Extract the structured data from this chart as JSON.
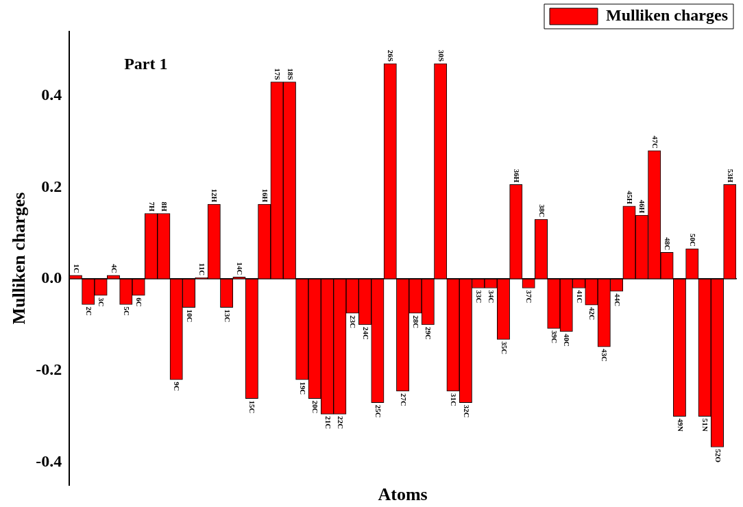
{
  "chart_data": {
    "type": "bar",
    "xlabel": "Atoms",
    "ylabel": "Mulliken charges",
    "annotations": [
      "Part 1"
    ],
    "categories": [
      "1C",
      "2C",
      "3C",
      "4C",
      "5C",
      "6C",
      "7H",
      "8H",
      "9C",
      "10C",
      "11C",
      "12H",
      "13C",
      "14C",
      "15C",
      "16H",
      "17S",
      "18S",
      "19C",
      "20C",
      "21C",
      "22C",
      "23C",
      "24C",
      "25C",
      "26S",
      "27C",
      "28C",
      "29C",
      "30S",
      "31C",
      "32C",
      "33C",
      "34C",
      "35C",
      "36H",
      "37C",
      "38C",
      "39C",
      "40C",
      "41C",
      "42C",
      "43C",
      "44C",
      "45H",
      "46H",
      "47C",
      "48C",
      "49N",
      "50C",
      "51N",
      "52O",
      "53H"
    ],
    "series": [
      {
        "name": "Mulliken charges",
        "color": "#ff0000",
        "values": [
          0.008,
          -0.056,
          -0.036,
          0.008,
          -0.056,
          -0.036,
          0.143,
          0.143,
          -0.22,
          -0.062,
          0.003,
          0.163,
          -0.062,
          0.004,
          -0.261,
          0.163,
          0.43,
          0.43,
          -0.22,
          -0.261,
          -0.295,
          -0.295,
          -0.075,
          -0.1,
          -0.27,
          0.47,
          -0.245,
          -0.075,
          -0.1,
          0.47,
          -0.245,
          -0.27,
          -0.02,
          -0.02,
          -0.132,
          0.206,
          -0.02,
          0.13,
          -0.108,
          -0.115,
          -0.02,
          -0.057,
          -0.148,
          -0.027,
          0.159,
          0.139,
          0.28,
          0.058,
          -0.3,
          0.066,
          -0.3,
          -0.367,
          0.206
        ]
      }
    ],
    "ylim": [
      -0.45,
      0.54
    ],
    "yticks": [
      {
        "value": -0.4,
        "label": "-0.4"
      },
      {
        "value": -0.2,
        "label": "-0.2"
      },
      {
        "value": 0,
        "label": "0.0"
      },
      {
        "value": 0.2,
        "label": "0.2"
      },
      {
        "value": 0.4,
        "label": "0.4"
      }
    ],
    "grid": false,
    "legend": "top right"
  }
}
